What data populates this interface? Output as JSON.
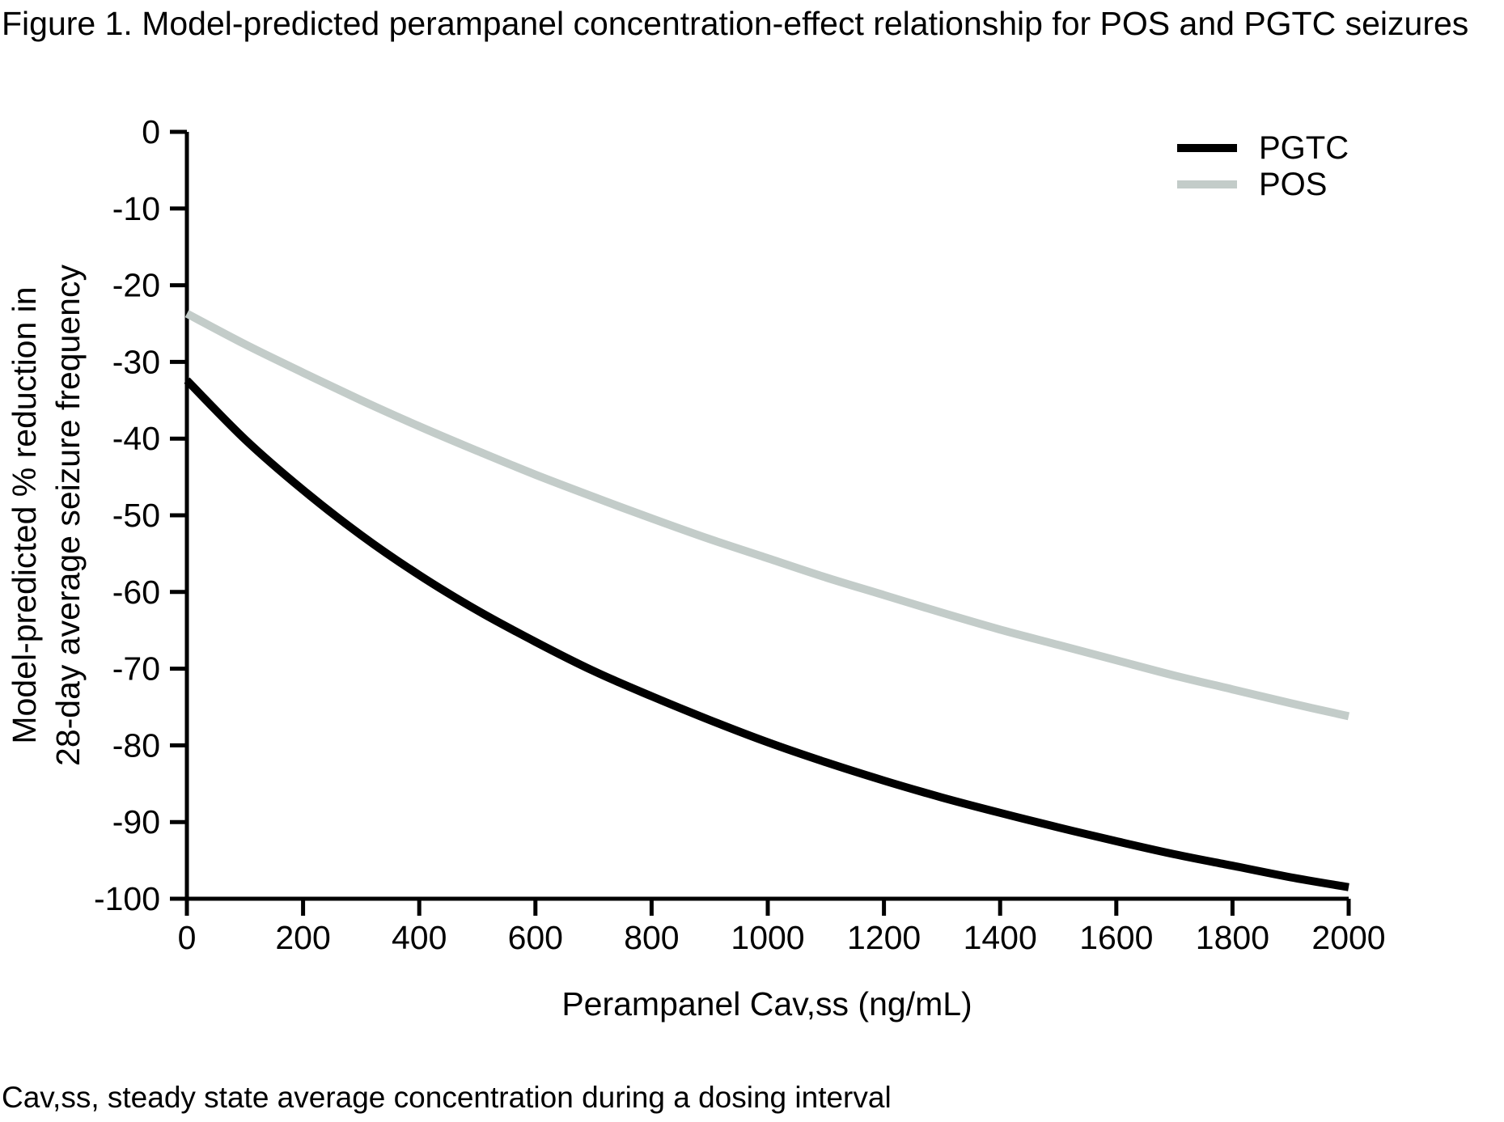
{
  "chart_data": {
    "type": "line",
    "title": "Figure 1. Model-predicted perampanel concentration-effect relationship for POS and PGTC seizures",
    "xlabel": "Perampanel Cav,ss (ng/mL)",
    "ylabel": "Model-predicted % reduction in 28-day average seizure frequency",
    "ylabel_line1": "Model-predicted % reduction in",
    "ylabel_line2": "28-day average seizure frequency",
    "footnote": "Cav,ss, steady state average concentration during a dosing interval",
    "xlim": [
      0,
      2000
    ],
    "ylim": [
      -100,
      0
    ],
    "x_ticks": [
      0,
      200,
      400,
      600,
      800,
      1000,
      1200,
      1400,
      1600,
      1800,
      2000
    ],
    "y_ticks": [
      0,
      -10,
      -20,
      -30,
      -40,
      -50,
      -60,
      -70,
      -80,
      -90,
      -100
    ],
    "grid": false,
    "legend_position": "top-right",
    "axis_color": "#000000",
    "x": [
      0,
      100,
      200,
      300,
      400,
      500,
      600,
      700,
      800,
      900,
      1000,
      1100,
      1200,
      1300,
      1400,
      1500,
      1600,
      1700,
      1800,
      1900,
      2000
    ],
    "series": [
      {
        "name": "PGTC",
        "color": "#000000",
        "values": [
          -32.4,
          -40.1,
          -46.7,
          -52.6,
          -57.8,
          -62.4,
          -66.5,
          -70.3,
          -73.6,
          -76.7,
          -79.6,
          -82.2,
          -84.6,
          -86.8,
          -88.8,
          -90.7,
          -92.5,
          -94.2,
          -95.7,
          -97.2,
          -98.5
        ]
      },
      {
        "name": "POS",
        "color": "#c3ccc9",
        "values": [
          -23.7,
          -27.7,
          -31.4,
          -35.0,
          -38.4,
          -41.6,
          -44.7,
          -47.6,
          -50.4,
          -53.1,
          -55.6,
          -58.1,
          -60.4,
          -62.7,
          -64.9,
          -66.9,
          -68.9,
          -70.9,
          -72.7,
          -74.5,
          -76.2
        ]
      }
    ]
  }
}
